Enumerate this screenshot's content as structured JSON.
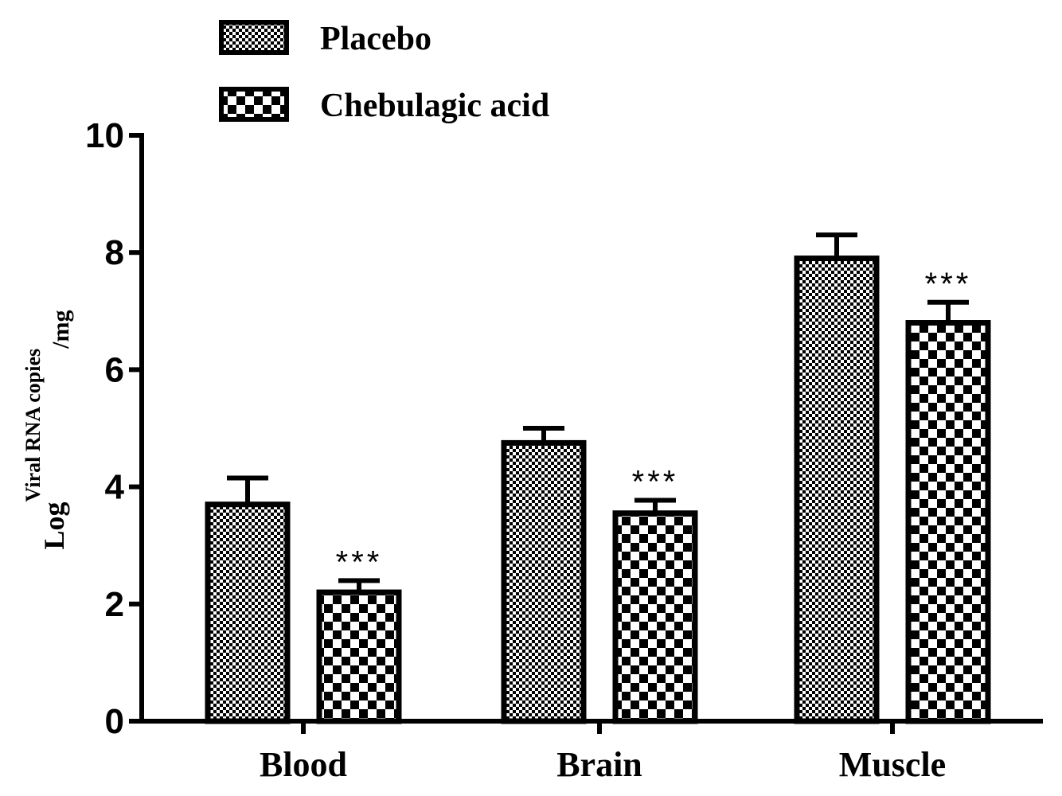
{
  "chart_data": {
    "type": "bar",
    "title": "",
    "xlabel": "",
    "ylabel": {
      "base": "Log",
      "superscript": "Viral RNA copies",
      "subscript": "/mg"
    },
    "ylim": [
      0,
      10
    ],
    "yticks": [
      "0",
      "2",
      "4",
      "6",
      "8",
      "10"
    ],
    "grid": false,
    "legend_position": "top-left",
    "categories": [
      "Blood",
      "Brain",
      "Muscle"
    ],
    "series": [
      {
        "name": "Placebo",
        "pattern": "fine-checker",
        "values": [
          3.7,
          4.75,
          7.9
        ],
        "errors": [
          0.45,
          0.25,
          0.4
        ]
      },
      {
        "name": "Chebulagic acid",
        "pattern": "coarse-checker",
        "values": [
          2.2,
          3.55,
          6.8
        ],
        "errors": [
          0.2,
          0.22,
          0.35
        ]
      }
    ],
    "annotations": [
      "***",
      "***",
      "***"
    ],
    "colors": {
      "bar_outline": "#000000",
      "fill_dark": "#000000",
      "fill_light": "#ffffff"
    }
  }
}
